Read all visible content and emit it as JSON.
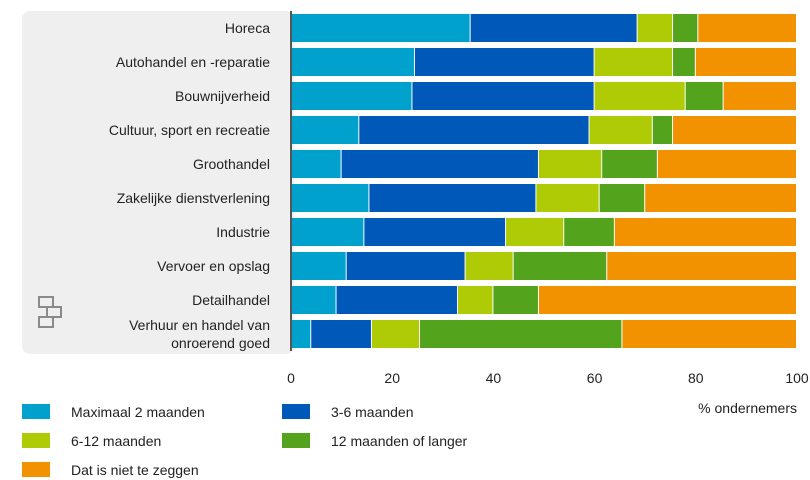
{
  "chart_data": {
    "type": "bar",
    "orientation": "horizontal",
    "stacked": true,
    "xlabel": "% ondernemers",
    "xlim": [
      0,
      100
    ],
    "xticks": [
      0,
      20,
      40,
      60,
      80,
      100
    ],
    "grid": false,
    "legend_position": "bottom",
    "categories": [
      [
        "Horeca"
      ],
      [
        "Autohandel en -reparatie"
      ],
      [
        "Bouwnijverheid"
      ],
      [
        "Cultuur, sport en recreatie"
      ],
      [
        "Groothandel"
      ],
      [
        "Zakelijke dienstverlening"
      ],
      [
        "Industrie"
      ],
      [
        "Vervoer en opslag"
      ],
      [
        "Detailhandel"
      ],
      [
        "Verhuur en handel van",
        "onroerend goed"
      ]
    ],
    "series": [
      {
        "name": "Maximaal 2 maanden",
        "color": "#00a1cd",
        "values": [
          35.5,
          24.5,
          24,
          13.5,
          10,
          15.5,
          14.5,
          11,
          9,
          4
        ]
      },
      {
        "name": "3-6 maanden",
        "color": "#0058b8",
        "values": [
          33,
          35.5,
          36,
          45.5,
          39,
          33,
          28,
          23.5,
          24,
          12
        ]
      },
      {
        "name": "6-12 maanden",
        "color": "#afcb05",
        "values": [
          7,
          15.5,
          18,
          12.5,
          12.5,
          12.5,
          11.5,
          9.5,
          7,
          9.5
        ]
      },
      {
        "name": "12 maanden of langer",
        "color": "#53a31d",
        "values": [
          5,
          4.5,
          7.5,
          4,
          11,
          9,
          10,
          18.5,
          9,
          40
        ]
      },
      {
        "name": "Dat is niet te zeggen",
        "color": "#f39200",
        "values": [
          19.5,
          20,
          14.5,
          24.5,
          27.5,
          30,
          36,
          37.5,
          51,
          34.5
        ]
      }
    ]
  },
  "logo": {
    "name": "cbs-logo"
  }
}
